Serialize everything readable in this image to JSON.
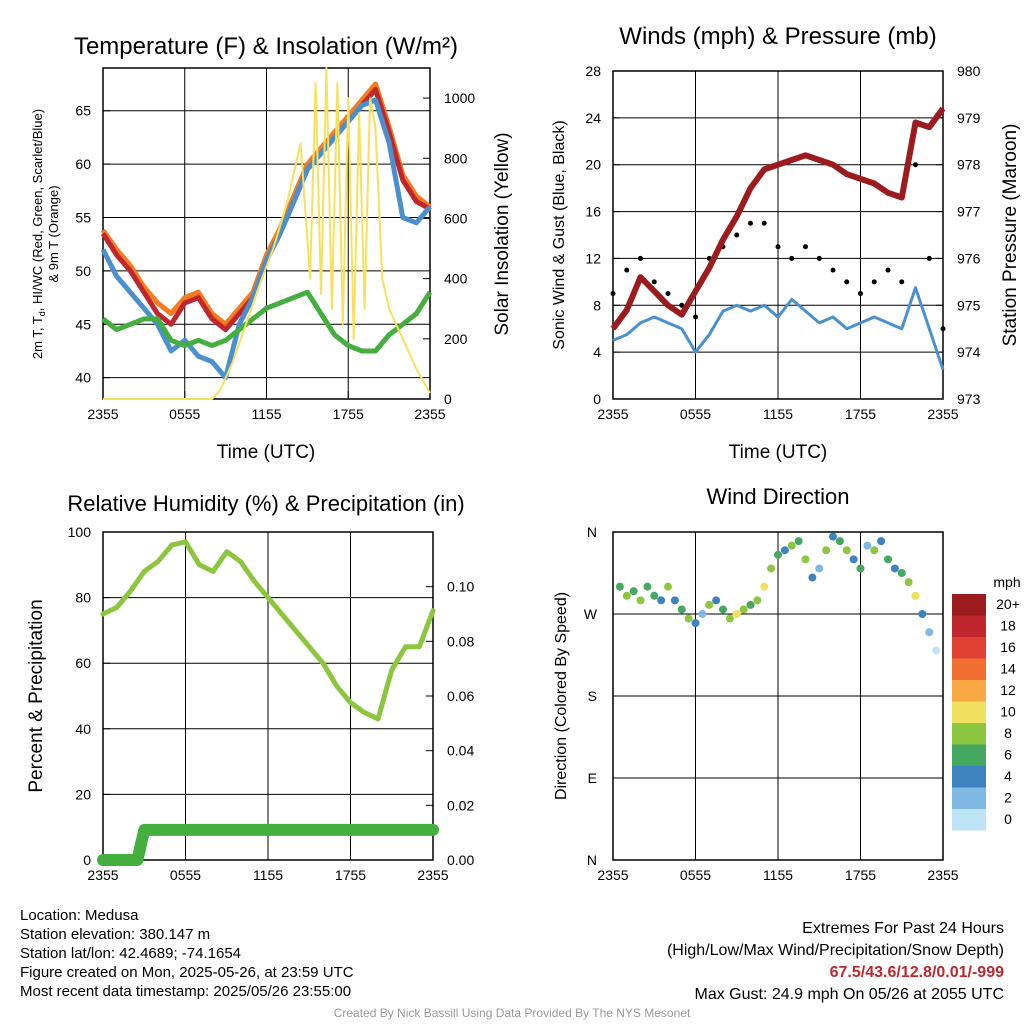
{
  "chart_data": [
    {
      "type": "line",
      "title": "Temperature (F) & Insolation (W/m²)",
      "xlabel": "Time (UTC)",
      "ylabel_lines": [
        "2m T, T",
        "d",
        ", HI/WC (Red, Green, Scarlet/Blue)",
        "& 9m T (Orange)"
      ],
      "y2label": "Solar Insolation (Yellow)",
      "xticks": [
        "2355",
        "0555",
        "1155",
        "1755",
        "2355"
      ],
      "ylim": [
        38,
        69
      ],
      "yticks": [
        40,
        45,
        50,
        55,
        60,
        65
      ],
      "y2lim": [
        0,
        1100
      ],
      "y2ticks": [
        0,
        200,
        400,
        600,
        800,
        1000
      ],
      "series": [
        {
          "color": "#f47c20",
          "axis": "left",
          "x": [
            0,
            1,
            2,
            3,
            4,
            5,
            6,
            7,
            8,
            9,
            10,
            11,
            12,
            13,
            14,
            15,
            16,
            17,
            18,
            19,
            20,
            21,
            22,
            23,
            24
          ],
          "values": [
            53.8,
            52,
            50.5,
            48.5,
            47,
            46,
            47.5,
            48,
            46,
            45,
            46.5,
            48,
            51.5,
            54,
            57,
            60,
            61.5,
            63,
            64.5,
            66,
            67.5,
            63.5,
            59,
            57,
            56
          ]
        },
        {
          "color": "#c0272d",
          "axis": "left",
          "x": [
            0,
            1,
            2,
            3,
            4,
            5,
            6,
            7,
            8,
            9,
            10,
            11,
            12,
            13,
            14,
            15,
            16,
            17,
            18,
            19,
            20,
            21,
            22,
            23,
            24
          ],
          "values": [
            53.5,
            51.5,
            50,
            48,
            46,
            45,
            47,
            47.5,
            45.5,
            44.5,
            46,
            47.5,
            51,
            53.5,
            56.5,
            59.5,
            61,
            62.5,
            64,
            65.5,
            67,
            63,
            58.5,
            56.5,
            55.8
          ]
        },
        {
          "color": "#4a90cf",
          "axis": "left",
          "x": [
            0,
            1,
            2,
            3,
            4,
            5,
            6,
            7,
            8,
            9,
            10,
            11,
            12,
            13,
            14,
            15,
            16,
            17,
            18,
            19,
            20,
            21,
            22,
            23,
            24
          ],
          "values": [
            52,
            49.5,
            48,
            46.5,
            45,
            42.5,
            43.5,
            42,
            41.5,
            40,
            45,
            47.5,
            51,
            53.5,
            56.5,
            59.5,
            61,
            62.5,
            64,
            65.5,
            66,
            62,
            55,
            54.5,
            56
          ]
        },
        {
          "color": "#44ae3e",
          "axis": "left",
          "x": [
            0,
            1,
            2,
            3,
            4,
            5,
            6,
            7,
            8,
            9,
            10,
            11,
            12,
            13,
            14,
            15,
            16,
            17,
            18,
            19,
            20,
            21,
            22,
            23,
            24
          ],
          "values": [
            45.5,
            44.5,
            45,
            45.5,
            45.5,
            43.5,
            43,
            43.5,
            43,
            43.5,
            44.5,
            45.5,
            46.5,
            47,
            47.5,
            48,
            46,
            44,
            43,
            42.5,
            42.5,
            44,
            45,
            46,
            48
          ]
        },
        {
          "color": "#f7e15c",
          "axis": "right",
          "x": [
            0,
            2,
            4,
            6,
            8,
            8.6,
            9.5,
            10.5,
            11.5,
            12.5,
            13.5,
            14.5,
            15.2,
            15.6,
            16,
            16.4,
            16.8,
            17.2,
            17.6,
            18,
            18.4,
            18.8,
            19.2,
            19.6,
            20,
            20.5,
            21,
            22,
            23,
            24
          ],
          "values": [
            0,
            0,
            0,
            0,
            0,
            30,
            120,
            250,
            380,
            500,
            650,
            850,
            400,
            1050,
            350,
            1100,
            300,
            1050,
            250,
            1000,
            200,
            950,
            300,
            1000,
            900,
            400,
            300,
            200,
            100,
            20
          ]
        }
      ]
    },
    {
      "type": "line",
      "title": "Winds (mph) & Pressure (mb)",
      "xlabel": "Time (UTC)",
      "ylabel": "Sonic Wind & Gust (Blue, Black)",
      "y2label": "Station Pressure (Maroon)",
      "xticks": [
        "2355",
        "0555",
        "1155",
        "1755",
        "2355"
      ],
      "ylim": [
        0,
        28
      ],
      "yticks": [
        0,
        4,
        8,
        12,
        16,
        20,
        24,
        28
      ],
      "y2lim": [
        973,
        980
      ],
      "y2ticks": [
        973,
        974,
        975,
        976,
        977,
        978,
        979,
        980
      ],
      "series": [
        {
          "color": "#4a90cf",
          "axis": "left",
          "x": [
            0,
            1,
            2,
            3,
            4,
            5,
            6,
            7,
            8,
            9,
            10,
            11,
            12,
            13,
            14,
            15,
            16,
            17,
            18,
            19,
            20,
            21,
            22,
            23,
            24
          ],
          "values": [
            5,
            5.5,
            6.5,
            7,
            6.5,
            6,
            4,
            5.5,
            7.5,
            8,
            7.5,
            8,
            7,
            8.5,
            7.5,
            6.5,
            7,
            6,
            6.5,
            7,
            6.5,
            6,
            9.5,
            6,
            2.5
          ]
        },
        {
          "color": "#000000",
          "axis": "left",
          "type": "scatter",
          "x": [
            0,
            1,
            2,
            3,
            4,
            5,
            6,
            7,
            8,
            9,
            10,
            11,
            12,
            13,
            14,
            15,
            16,
            17,
            18,
            19,
            20,
            21,
            22,
            23,
            24
          ],
          "values": [
            9,
            11,
            12,
            10,
            9,
            8,
            7,
            12,
            13,
            14,
            15,
            15,
            13,
            12,
            13,
            12,
            11,
            10,
            9,
            10,
            11,
            10,
            20,
            12,
            6
          ]
        },
        {
          "color": "#9c1b1e",
          "axis": "right",
          "x": [
            0,
            1,
            2,
            3,
            4,
            5,
            6,
            7,
            8,
            9,
            10,
            11,
            12,
            13,
            14,
            15,
            16,
            17,
            18,
            19,
            20,
            21,
            22,
            23,
            24
          ],
          "values": [
            974.5,
            974.9,
            975.6,
            975.3,
            975,
            974.8,
            975.3,
            975.8,
            976.4,
            976.9,
            977.5,
            977.9,
            978,
            978.1,
            978.2,
            978.1,
            978,
            977.8,
            977.7,
            977.6,
            977.4,
            977.3,
            978.9,
            978.8,
            979.2
          ]
        }
      ]
    },
    {
      "type": "line",
      "title": "Relative Humidity (%) & Precipitation (in)",
      "ylabel": "Percent & Precipitation",
      "xticks": [
        "2355",
        "0555",
        "1155",
        "1755",
        "2355"
      ],
      "ylim": [
        0,
        100
      ],
      "yticks": [
        0,
        20,
        40,
        60,
        80,
        100
      ],
      "y2lim": [
        0,
        0.12
      ],
      "y2ticks": [
        "0.00",
        "0.02",
        "0.04",
        "0.06",
        "0.08",
        "0.10"
      ],
      "series": [
        {
          "color": "#8cc63f",
          "axis": "left",
          "x": [
            0,
            1,
            2,
            3,
            4,
            5,
            6,
            7,
            8,
            9,
            10,
            11,
            12,
            13,
            14,
            15,
            16,
            17,
            18,
            19,
            20,
            21,
            22,
            23,
            24
          ],
          "values": [
            75,
            77,
            82,
            88,
            91,
            96,
            97,
            90,
            88,
            94,
            91,
            85,
            80,
            75,
            70,
            65,
            60,
            53,
            48,
            45,
            43,
            58,
            65,
            65,
            76
          ]
        },
        {
          "color": "#44ae3e",
          "axis": "right",
          "x": [
            0,
            2.5,
            3,
            24
          ],
          "values": [
            0,
            0,
            0.011,
            0.011
          ]
        }
      ]
    },
    {
      "type": "scatter",
      "title": "Wind Direction",
      "ylabel": "Direction (Colored By Speed)",
      "xticks": [
        "2355",
        "0555",
        "1155",
        "1755",
        "2355"
      ],
      "yticks": [
        "N",
        "E",
        "S",
        "W",
        "N"
      ],
      "ylim": [
        0,
        360
      ],
      "legend": {
        "title": "mph",
        "labels": [
          "20+",
          "18",
          "16",
          "14",
          "12",
          "10",
          "8",
          "6",
          "4",
          "2",
          "0"
        ]
      },
      "colors": [
        "#9c1b1e",
        "#c0272d",
        "#e04032",
        "#f06e30",
        "#f7a845",
        "#f0e060",
        "#8cc63f",
        "#44a860",
        "#3d83c0",
        "#7fb9e3",
        "#bfe3f6"
      ],
      "x": [
        0.5,
        1,
        1.5,
        2,
        2.5,
        3,
        3.5,
        4,
        4.5,
        5,
        5.5,
        6,
        6.5,
        7,
        7.5,
        8,
        8.5,
        9,
        9.5,
        10,
        10.5,
        11,
        11.5,
        12,
        12.5,
        13,
        13.5,
        14,
        14.5,
        15,
        15.5,
        16,
        16.5,
        17,
        17.5,
        18,
        18.5,
        19,
        19.5,
        20,
        20.5,
        21,
        21.5,
        22,
        22.5,
        23,
        23.5
      ],
      "values": [
        300,
        290,
        295,
        285,
        300,
        290,
        285,
        300,
        285,
        275,
        265,
        260,
        270,
        280,
        285,
        275,
        265,
        270,
        275,
        280,
        285,
        300,
        320,
        335,
        340,
        345,
        350,
        330,
        310,
        320,
        340,
        355,
        350,
        340,
        330,
        320,
        345,
        340,
        350,
        330,
        320,
        315,
        305,
        290,
        270,
        250,
        230
      ],
      "speed_index": [
        7,
        6,
        7,
        6,
        7,
        7,
        8,
        6,
        8,
        7,
        6,
        8,
        9,
        6,
        8,
        7,
        6,
        5,
        6,
        7,
        6,
        5,
        6,
        7,
        8,
        6,
        7,
        6,
        8,
        9,
        6,
        8,
        7,
        6,
        8,
        7,
        9,
        6,
        8,
        7,
        8,
        7,
        6,
        5,
        8,
        9,
        10
      ]
    }
  ],
  "footer": {
    "location": "Location: Medusa",
    "elevation": "Station elevation: 380.147 m",
    "latlon": "Station lat/lon: 42.4689; -74.1654",
    "created": "Figure created on Mon, 2025-05-26, at 23:59 UTC",
    "recent": "Most recent data timestamp: 2025/05/26 23:55:00",
    "extremes_title": "Extremes For Past 24 Hours",
    "extremes_legend": "(High/Low/Max Wind/Precipitation/Snow Depth)",
    "extremes_values": "67.5/43.6/12.8/0.01/-999",
    "max_gust": "Max Gust: 24.9 mph On 05/26 at 2055 UTC",
    "credit": "Created By Nick Bassill Using Data Provided By The NYS Mesonet"
  }
}
